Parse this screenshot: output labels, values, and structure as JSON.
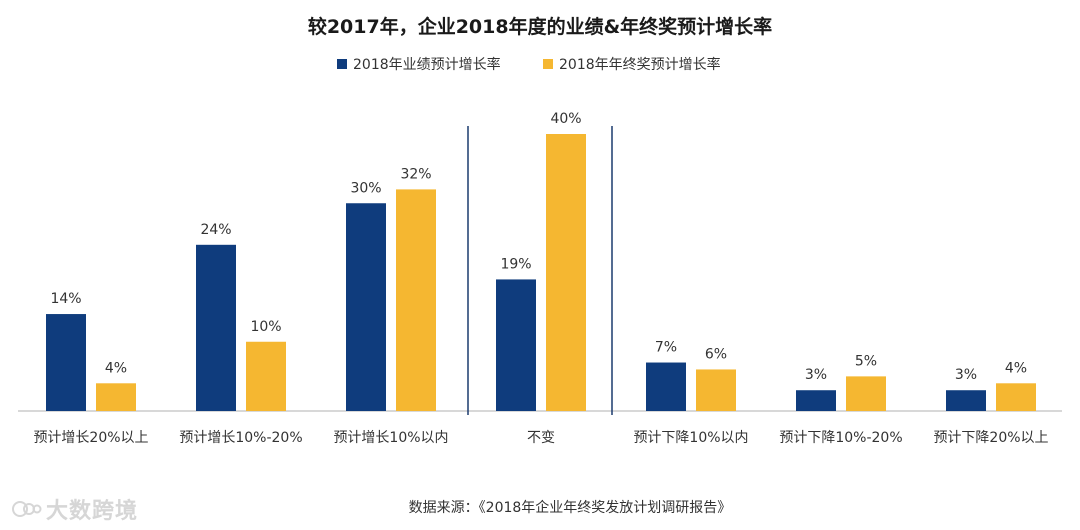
{
  "chart_data": {
    "type": "bar",
    "title": "较2017年，企业2018年度的业绩&年终奖预计增长率",
    "categories": [
      "预计增长20%以上",
      "预计增长10%-20%",
      "预计增长10%以内",
      "不变",
      "预计下降10%以内",
      "预计下降10%-20%",
      "预计下降20%以上"
    ],
    "series": [
      {
        "name": "2018年业绩预计增长率",
        "values": [
          14,
          24,
          30,
          19,
          7,
          3,
          3
        ],
        "labels": [
          "14%",
          "24%",
          "30%",
          "19%",
          "7%",
          "3%",
          "3%"
        ]
      },
      {
        "name": "2018年年终奖预计增长率",
        "values": [
          4,
          10,
          32,
          40,
          6,
          5,
          4
        ],
        "labels": [
          "4%",
          "10%",
          "32%",
          "40%",
          "6%",
          "5%",
          "4%"
        ]
      }
    ],
    "ylim": [
      0,
      40
    ],
    "grid": false,
    "legend_position": "top-center",
    "colors": {
      "series1": "#0f3c7d",
      "series2": "#f5b731",
      "axis": "#b0b0b0",
      "divider": "#1b3b6f"
    },
    "source": "数据来源：《2018年企业年终奖发放计划调研报告》"
  },
  "watermark": {
    "text": "大数跨境",
    "icon": "bigdata-logo-icon"
  }
}
